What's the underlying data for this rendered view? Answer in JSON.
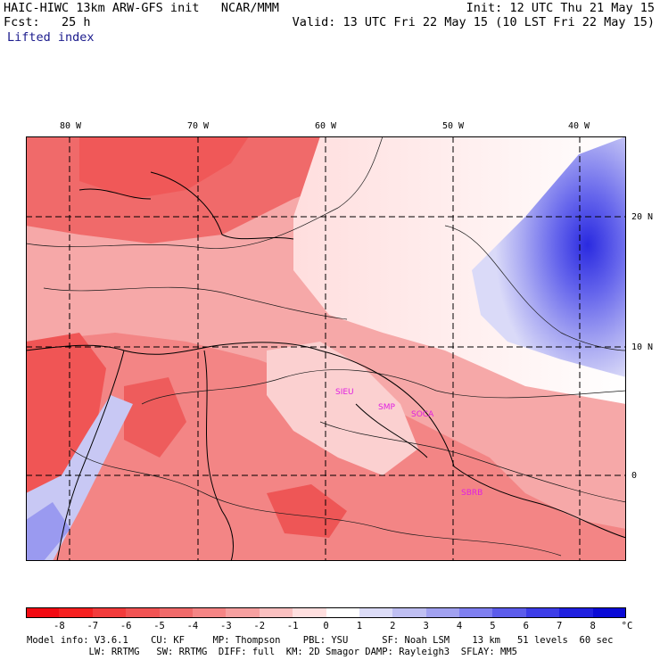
{
  "header": {
    "line1_left": "HAIC-HIWC 13km ARW-GFS init   NCAR/MMM",
    "line2_left": "Fcst:   25 h",
    "line3_left": "Lifted index",
    "line1_right": "Init: 12 UTC Thu 21 May 15",
    "line2_right": "Valid: 13 UTC Fri 22 May 15 (10 LST Fri 22 May 15)"
  },
  "lon_labels": [
    "80 W",
    "70 W",
    "60 W",
    "50 W",
    "40 W"
  ],
  "lat_labels": [
    "20 N",
    "10 N",
    "0"
  ],
  "stations": [
    "SIEU",
    "SMP",
    "SOCA",
    "SBRB"
  ],
  "colorbar": {
    "unit": "°C",
    "labels": [
      "-8",
      "-7",
      "-6",
      "-5",
      "-4",
      "-3",
      "-2",
      "-1",
      "0",
      "1",
      "2",
      "3",
      "4",
      "5",
      "6",
      "7",
      "8"
    ],
    "colors": [
      "#f20a12",
      "#f52020",
      "#f23b3b",
      "#f15353",
      "#f06a6a",
      "#f58585",
      "#f6a0a0",
      "#fac0c0",
      "#ffdfdf",
      "#ffffff",
      "#dcdcf7",
      "#bfbff2",
      "#a1a1f0",
      "#7f7ff0",
      "#5c5ceb",
      "#3d3de8",
      "#2020e0",
      "#0a0ad6"
    ]
  },
  "footer": {
    "line1": "Model info: V3.6.1    CU: KF     MP: Thompson    PBL: YSU      SF: Noah LSM    13 km   51 levels  60 sec",
    "line2": "           LW: RRTMG   SW: RRTMG  DIFF: full  KM: 2D Smagor DAMP: Rayleigh3  SFLAY: MM5"
  }
}
